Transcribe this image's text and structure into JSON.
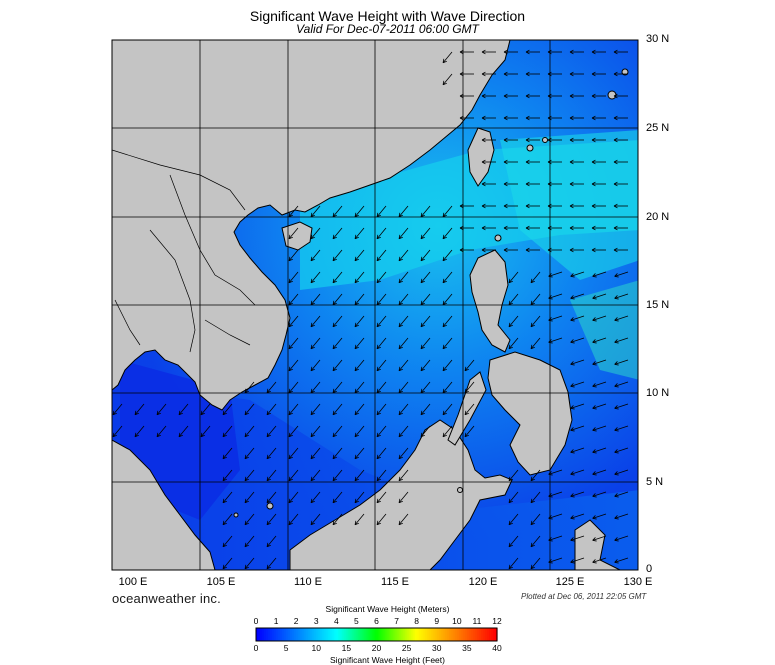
{
  "title": "Significant Wave Height with Wave Direction",
  "subtitle": "Valid For Dec-07-2011 06:00 GMT",
  "lon_labels": [
    "100 E",
    "105 E",
    "110 E",
    "115 E",
    "120 E",
    "125 E",
    "130 E"
  ],
  "lat_labels": [
    "30 N",
    "25 N",
    "20 N",
    "15 N",
    "10 N",
    "5 N",
    "0"
  ],
  "brand": "oceanweather inc.",
  "plotted": "Plotted at Dec 06, 2011 22:05 GMT",
  "colorbar": {
    "title_meters": "Significant Wave Height (Meters)",
    "title_feet": "Significant Wave Height (Feet)",
    "meters_ticks": [
      "0",
      "1",
      "2",
      "3",
      "4",
      "5",
      "6",
      "7",
      "8",
      "9",
      "10",
      "11",
      "12"
    ],
    "feet_ticks": [
      "0",
      "5",
      "10",
      "15",
      "20",
      "25",
      "30",
      "35",
      "40"
    ],
    "colors": [
      "#0000ff",
      "#0040ff",
      "#0080ff",
      "#00c0ff",
      "#00ffff",
      "#00ff80",
      "#00ff00",
      "#80ff00",
      "#ffff00",
      "#ffc000",
      "#ff8000",
      "#ff4000",
      "#ff0000"
    ]
  },
  "map": {
    "land_color": "#c4c4c4",
    "deep_blue": "#0a2fe8",
    "mid_blue": "#0a6cf0",
    "light_cyan": "#12c8ee",
    "grid_color": "#000000",
    "arrow_direction": "south-west"
  }
}
